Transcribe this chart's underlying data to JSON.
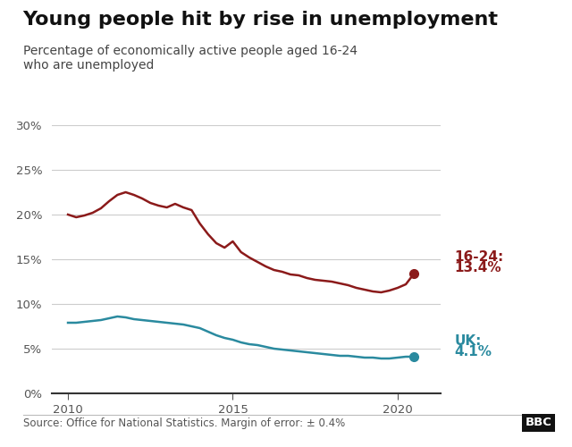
{
  "title": "Young people hit by rise in unemployment",
  "subtitle_line1": "Percentage of economically active people aged 16-24",
  "subtitle_line2": "who are unemployed",
  "footer": "Source: Office for National Statistics. Margin of error: ± 0.4%",
  "youth_color": "#8B1A1A",
  "uk_color": "#2A8A9F",
  "background_color": "#ffffff",
  "ylim": [
    0.0,
    0.3
  ],
  "yticks": [
    0.0,
    0.05,
    0.1,
    0.15,
    0.2,
    0.25,
    0.3
  ],
  "ytick_labels": [
    "0%",
    "5%",
    "10%",
    "15%",
    "20%",
    "25%",
    "30%"
  ],
  "xticks": [
    2010,
    2015,
    2020
  ],
  "xtick_labels": [
    "2010",
    "2015",
    "2020"
  ],
  "label_16_24_line1": "16-24:",
  "label_16_24_line2": "13.4%",
  "label_uk_line1": "UK:",
  "label_uk_line2": "4.1%",
  "youth_unemployment": [
    [
      2010.0,
      0.2
    ],
    [
      2010.25,
      0.197
    ],
    [
      2010.5,
      0.199
    ],
    [
      2010.75,
      0.202
    ],
    [
      2011.0,
      0.207
    ],
    [
      2011.25,
      0.215
    ],
    [
      2011.5,
      0.222
    ],
    [
      2011.75,
      0.225
    ],
    [
      2012.0,
      0.222
    ],
    [
      2012.25,
      0.218
    ],
    [
      2012.5,
      0.213
    ],
    [
      2012.75,
      0.21
    ],
    [
      2013.0,
      0.208
    ],
    [
      2013.25,
      0.212
    ],
    [
      2013.5,
      0.208
    ],
    [
      2013.75,
      0.205
    ],
    [
      2014.0,
      0.19
    ],
    [
      2014.25,
      0.178
    ],
    [
      2014.5,
      0.168
    ],
    [
      2014.75,
      0.163
    ],
    [
      2015.0,
      0.17
    ],
    [
      2015.25,
      0.158
    ],
    [
      2015.5,
      0.152
    ],
    [
      2015.75,
      0.147
    ],
    [
      2016.0,
      0.142
    ],
    [
      2016.25,
      0.138
    ],
    [
      2016.5,
      0.136
    ],
    [
      2016.75,
      0.133
    ],
    [
      2017.0,
      0.132
    ],
    [
      2017.25,
      0.129
    ],
    [
      2017.5,
      0.127
    ],
    [
      2017.75,
      0.126
    ],
    [
      2018.0,
      0.125
    ],
    [
      2018.25,
      0.123
    ],
    [
      2018.5,
      0.121
    ],
    [
      2018.75,
      0.118
    ],
    [
      2019.0,
      0.116
    ],
    [
      2019.25,
      0.114
    ],
    [
      2019.5,
      0.113
    ],
    [
      2019.75,
      0.115
    ],
    [
      2020.0,
      0.118
    ],
    [
      2020.25,
      0.122
    ],
    [
      2020.5,
      0.134
    ]
  ],
  "uk_unemployment": [
    [
      2010.0,
      0.079
    ],
    [
      2010.25,
      0.079
    ],
    [
      2010.5,
      0.08
    ],
    [
      2010.75,
      0.081
    ],
    [
      2011.0,
      0.082
    ],
    [
      2011.25,
      0.084
    ],
    [
      2011.5,
      0.086
    ],
    [
      2011.75,
      0.085
    ],
    [
      2012.0,
      0.083
    ],
    [
      2012.25,
      0.082
    ],
    [
      2012.5,
      0.081
    ],
    [
      2012.75,
      0.08
    ],
    [
      2013.0,
      0.079
    ],
    [
      2013.25,
      0.078
    ],
    [
      2013.5,
      0.077
    ],
    [
      2013.75,
      0.075
    ],
    [
      2014.0,
      0.073
    ],
    [
      2014.25,
      0.069
    ],
    [
      2014.5,
      0.065
    ],
    [
      2014.75,
      0.062
    ],
    [
      2015.0,
      0.06
    ],
    [
      2015.25,
      0.057
    ],
    [
      2015.5,
      0.055
    ],
    [
      2015.75,
      0.054
    ],
    [
      2016.0,
      0.052
    ],
    [
      2016.25,
      0.05
    ],
    [
      2016.5,
      0.049
    ],
    [
      2016.75,
      0.048
    ],
    [
      2017.0,
      0.047
    ],
    [
      2017.25,
      0.046
    ],
    [
      2017.5,
      0.045
    ],
    [
      2017.75,
      0.044
    ],
    [
      2018.0,
      0.043
    ],
    [
      2018.25,
      0.042
    ],
    [
      2018.5,
      0.042
    ],
    [
      2018.75,
      0.041
    ],
    [
      2019.0,
      0.04
    ],
    [
      2019.25,
      0.04
    ],
    [
      2019.5,
      0.039
    ],
    [
      2019.75,
      0.039
    ],
    [
      2020.0,
      0.04
    ],
    [
      2020.25,
      0.041
    ],
    [
      2020.5,
      0.041
    ]
  ]
}
